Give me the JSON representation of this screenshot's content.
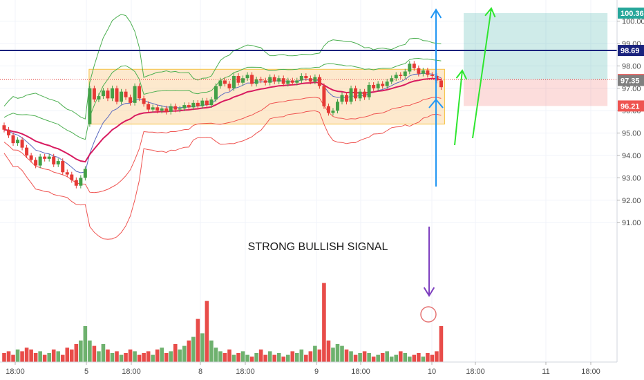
{
  "chart_data": {
    "type": "candlestick",
    "title": "",
    "y_range": [
      90.75,
      100.5
    ],
    "x_ticks": [
      "18:00",
      "5",
      "18:00",
      "8",
      "18:00",
      "9",
      "18:00",
      "10",
      "18:00",
      "11",
      "18:00"
    ],
    "y_ticks": [
      "91.00",
      "92.00",
      "93.00",
      "94.00",
      "95.00",
      "96.00",
      "97.00",
      "98.00",
      "99.00",
      "100.00"
    ],
    "price_badges": [
      {
        "value": "100.36",
        "color": "#26a69a"
      },
      {
        "value": "98.69",
        "color": "#1a237e"
      },
      {
        "value": "97.39",
        "color": "#ef5350"
      },
      {
        "value": "97.35",
        "color": "#808080"
      },
      {
        "value": "96.21",
        "color": "#ef5350"
      }
    ],
    "horizontal_lines": [
      {
        "value": 98.69,
        "color": "#1a237e",
        "style": "solid"
      },
      {
        "value": 97.39,
        "color": "#e53935",
        "style": "dotted"
      }
    ],
    "consolidation_box": {
      "x_start_bar": 19,
      "x_end_bar": 97,
      "top": 97.85,
      "bottom": 95.4,
      "color": "#fbd49c"
    },
    "position_tool": {
      "entry": 97.39,
      "target": 100.36,
      "stop": 96.21,
      "start_bar": 102,
      "end_bar": 133
    },
    "annotation": "STRONG BULLISH SIGNAL",
    "series": [
      {
        "name": "candles",
        "close_values": [
          95.15,
          94.9,
          94.55,
          94.7,
          94.35,
          94.0,
          93.8,
          93.55,
          93.95,
          93.85,
          93.95,
          93.6,
          93.75,
          93.25,
          93.15,
          92.9,
          92.65,
          93.0,
          93.4,
          97.0,
          96.5,
          96.65,
          96.9,
          96.55,
          97.0,
          96.4,
          96.85,
          96.6,
          96.35,
          97.1,
          96.55,
          96.3,
          96.05,
          96.15,
          96.0,
          96.1,
          95.95,
          96.2,
          96.05,
          96.1,
          96.25,
          96.15,
          96.35,
          96.2,
          96.45,
          96.25,
          96.5,
          97.1,
          97.35,
          97.2,
          97.0,
          97.55,
          97.25,
          97.45,
          97.6,
          97.2,
          97.4,
          97.35,
          97.25,
          97.5,
          97.3,
          97.45,
          97.2,
          97.35,
          97.25,
          97.35,
          97.55,
          97.45,
          97.3,
          97.5,
          97.1,
          96.2,
          95.9,
          96.0,
          96.4,
          96.7,
          96.4,
          97.0,
          96.55,
          96.85,
          96.6,
          97.15,
          97.0,
          97.2,
          97.1,
          97.3,
          97.45,
          97.6,
          97.55,
          97.75,
          98.1,
          97.9,
          97.65,
          97.8,
          97.6,
          97.55,
          97.35,
          97.05
        ]
      },
      {
        "name": "volume",
        "values": [
          0.25,
          0.3,
          0.2,
          0.35,
          0.3,
          0.4,
          0.35,
          0.25,
          0.3,
          0.2,
          0.25,
          0.35,
          0.3,
          0.2,
          0.4,
          0.35,
          0.5,
          0.6,
          1.0,
          0.6,
          0.45,
          0.3,
          0.5,
          0.35,
          0.25,
          0.3,
          0.2,
          0.25,
          0.35,
          0.3,
          0.2,
          0.25,
          0.3,
          0.2,
          0.35,
          0.4,
          0.25,
          0.3,
          0.5,
          0.35,
          0.45,
          0.6,
          0.7,
          1.2,
          0.8,
          1.7,
          0.6,
          0.4,
          0.3,
          0.25,
          0.35,
          0.2,
          0.25,
          0.3,
          0.2,
          0.15,
          0.25,
          0.35,
          0.2,
          0.3,
          0.2,
          0.25,
          0.15,
          0.2,
          0.3,
          0.25,
          0.35,
          0.2,
          0.3,
          0.45,
          0.35,
          2.2,
          0.6,
          0.4,
          0.5,
          0.45,
          0.35,
          0.3,
          0.2,
          0.25,
          0.3,
          0.25,
          0.15,
          0.2,
          0.25,
          0.3,
          0.15,
          0.2,
          0.3,
          0.25,
          0.15,
          0.2,
          0.25,
          0.15,
          0.25,
          0.2,
          0.3,
          1.0
        ]
      }
    ]
  }
}
